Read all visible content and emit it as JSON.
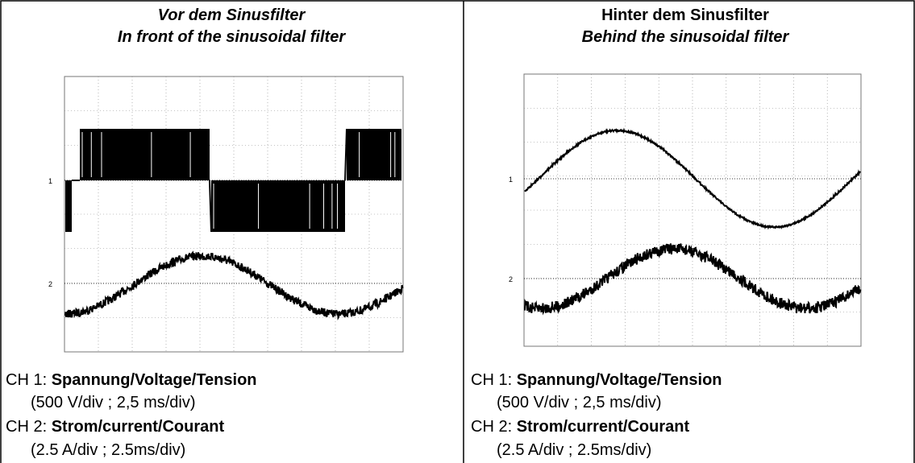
{
  "panels": [
    {
      "title": "Vor dem Sinusfilter",
      "subtitle": "In front of the sinusoidal filter",
      "markers": [
        "1",
        "2"
      ],
      "ch1": {
        "prefix": "CH 1:",
        "name": "Spannung/Voltage/Tension",
        "scale": "(500 V/div ; 2,5 ms/div)"
      },
      "ch2": {
        "prefix": "CH 2:",
        "name": "Strom/current/Courant",
        "scale": "(2.5 A/div ; 2.5ms/div)"
      }
    },
    {
      "title": "Hinter dem Sinusfilter",
      "subtitle": "Behind the sinusoidal filter",
      "markers": [
        "1",
        "2"
      ],
      "ch1": {
        "prefix": "CH 1:",
        "name": "Spannung/Voltage/Tension",
        "scale": "(500 V/div ; 2,5 ms/div)"
      },
      "ch2": {
        "prefix": "CH 2:",
        "name": "Strom/current/Courant",
        "scale": "(2.5 A/div ; 2.5ms/div)"
      }
    }
  ]
}
